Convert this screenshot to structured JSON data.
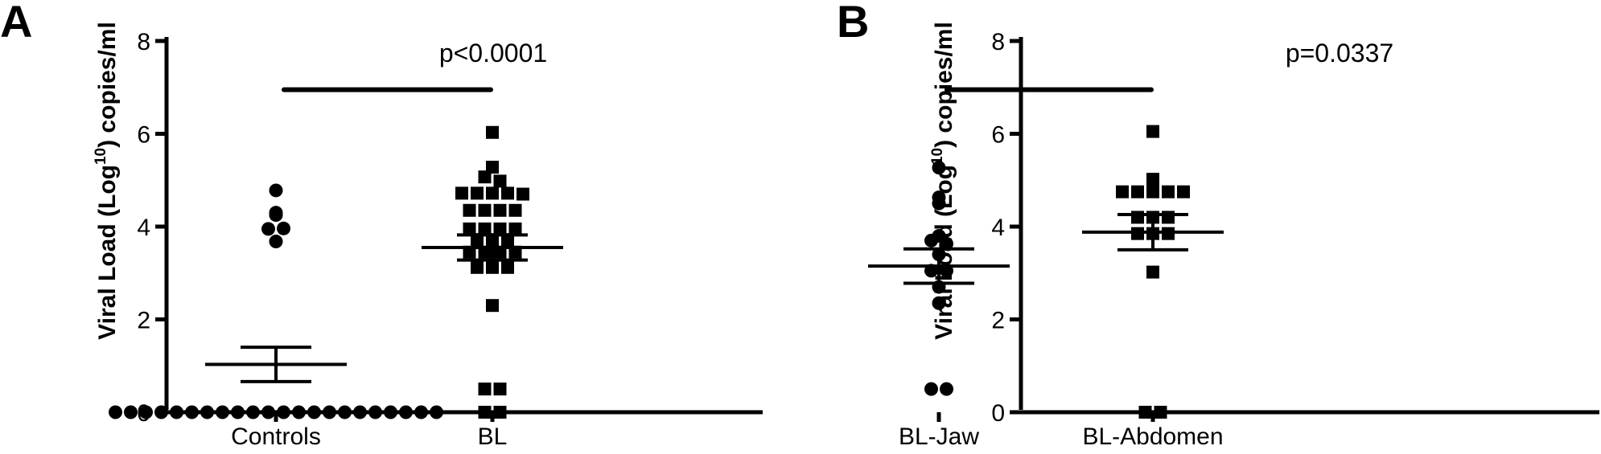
{
  "chart_data": [
    {
      "type": "scatter",
      "panel_label": "A",
      "ylabel": {
        "prefix": "Viral Load (Log",
        "superscript": "10",
        "suffix": ") copies/ml"
      },
      "ylim": [
        0,
        8
      ],
      "yticks": [
        "0",
        "2",
        "4",
        "6",
        "8"
      ],
      "categories": [
        "Controls",
        "BL"
      ],
      "significance": {
        "label": "p<0.0001",
        "from": "Controls",
        "to": "BL",
        "y": 6.95
      },
      "series": [
        {
          "category": "Controls",
          "marker": "circle",
          "mean": 1.03,
          "sem": 0.37,
          "values": [
            4.78,
            4.25,
            4.3,
            3.95,
            3.96,
            3.68,
            0,
            0,
            0,
            0,
            0,
            0,
            0,
            0,
            0,
            0,
            0,
            0,
            0,
            0,
            0,
            0,
            0,
            0,
            0,
            0,
            0,
            0
          ]
        },
        {
          "category": "BL",
          "marker": "square",
          "mean": 3.55,
          "sem": 0.27,
          "values": [
            6.03,
            5.28,
            5.07,
            4.98,
            4.72,
            4.72,
            4.72,
            4.72,
            4.7,
            4.35,
            4.35,
            4.35,
            4.35,
            3.95,
            3.95,
            3.95,
            3.95,
            3.72,
            3.72,
            3.72,
            3.45,
            3.45,
            3.45,
            3.45,
            3.12,
            3.12,
            3.12,
            2.3,
            0.5,
            0.5,
            0,
            0
          ]
        }
      ]
    },
    {
      "type": "scatter",
      "panel_label": "B",
      "ylabel": {
        "prefix": "Viral Load (Log",
        "superscript": "10",
        "suffix": ") copies/ml"
      },
      "ylim": [
        0,
        8
      ],
      "yticks": [
        "0",
        "2",
        "4",
        "6",
        "8"
      ],
      "categories": [
        "BL-Jaw",
        "BL-Abdomen"
      ],
      "significance": {
        "label": "p=0.0337",
        "from": "BL-Jaw",
        "to": "BL-Abdomen",
        "y": 6.95
      },
      "series": [
        {
          "category": "BL-Jaw",
          "marker": "circle",
          "mean": 3.15,
          "sem": 0.37,
          "values": [
            5.27,
            4.63,
            4.5,
            3.8,
            3.7,
            3.63,
            3.4,
            3.05,
            3.05,
            2.7,
            2.35,
            0.5,
            0.5
          ]
        },
        {
          "category": "BL-Abdomen",
          "marker": "square",
          "mean": 3.88,
          "sem": 0.38,
          "values": [
            6.05,
            5.02,
            4.9,
            4.75,
            4.75,
            4.75,
            4.75,
            4.75,
            4.2,
            4.2,
            4.2,
            3.85,
            3.85,
            3.85,
            3.02,
            0,
            0
          ]
        }
      ]
    }
  ]
}
